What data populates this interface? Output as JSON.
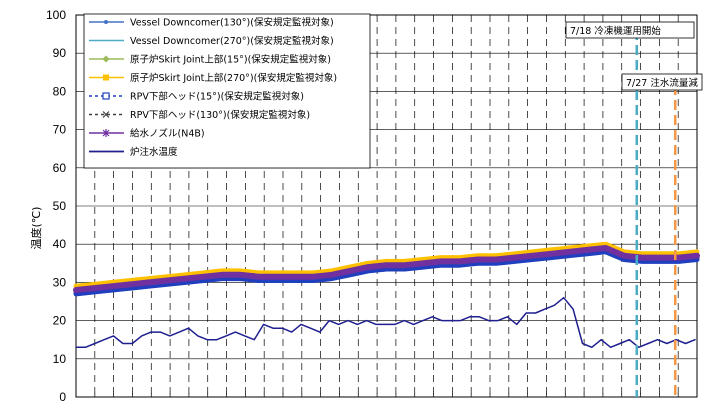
{
  "chart_data": {
    "type": "line",
    "ylabel": "温度(℃)",
    "ylim": [
      0,
      100
    ],
    "yticks": [
      0,
      10,
      20,
      30,
      40,
      50,
      60,
      70,
      80,
      90,
      100
    ],
    "grid": "dashed-vertical",
    "legend_position": "top-left",
    "annotations": [
      {
        "text": "7/18 冷凍機運用開始",
        "x_fraction": 0.903,
        "color": "#4bacc6"
      },
      {
        "text": "7/27 注水流量減",
        "x_fraction": 0.965,
        "color": "#f79646"
      }
    ],
    "series": [
      {
        "name": "Vessel Downcomer(130°)(保安規定監視対象)",
        "color": "#4472c4",
        "marker": "dot",
        "values": [
          28,
          28.5,
          29,
          29.5,
          30,
          30.5,
          31,
          31.5,
          32,
          32,
          31.5,
          31.5,
          31.5,
          31.5,
          32,
          33,
          34,
          34.5,
          34.5,
          35,
          35.5,
          35.5,
          36,
          36,
          36.5,
          37,
          37.5,
          38,
          38.5,
          39,
          37,
          36.5,
          36.5,
          36.5,
          37
        ]
      },
      {
        "name": "Vessel Downcomer(270°)(保安規定監視対象)",
        "color": "#4bacc6",
        "marker": "none",
        "values": [
          28,
          28.5,
          29,
          29.5,
          30,
          30.5,
          31,
          31.5,
          32,
          32,
          31.5,
          31.5,
          31.5,
          31.5,
          32,
          33,
          34,
          34.5,
          34.5,
          35,
          35.5,
          35.5,
          36,
          36,
          36.5,
          37,
          37.5,
          38,
          38.5,
          39,
          37,
          36.5,
          36.5,
          36.5,
          37
        ]
      },
      {
        "name": "原子炉Skirt Joint上部(15°)(保安規定監視対象)",
        "color": "#9bbb59",
        "marker": "diamond",
        "values": [
          27.5,
          28,
          28.5,
          29,
          29.5,
          30,
          30.5,
          31,
          31.5,
          31.5,
          31,
          31,
          31,
          31,
          31.5,
          32.5,
          33.5,
          34,
          34,
          34.5,
          35,
          35,
          35.5,
          35.5,
          36,
          36.5,
          37,
          37.5,
          38,
          38.5,
          36.5,
          36,
          36,
          36,
          36.5
        ]
      },
      {
        "name": "原子炉Skirt Joint上部(270°)(保安規定監視対象)",
        "color": "#ffc000",
        "marker": "square",
        "values": [
          29,
          29.5,
          30,
          30.5,
          31,
          31.5,
          32,
          32.5,
          33,
          33,
          32.5,
          32.5,
          32.5,
          32.5,
          33,
          34,
          35,
          35.5,
          35.5,
          36,
          36.5,
          36.5,
          37,
          37,
          37.5,
          38,
          38.5,
          39,
          39.5,
          40,
          38,
          37.5,
          37.5,
          37.5,
          38
        ]
      },
      {
        "name": "RPV下部ヘッド(15°)(保安規定監視対象)",
        "color": "#1f3fbf",
        "marker": "open-square",
        "values": [
          27,
          27.5,
          28,
          28.5,
          29,
          29.5,
          30,
          30.5,
          31,
          31,
          30.5,
          30.5,
          30.5,
          30.5,
          31,
          32,
          33,
          33.5,
          33.5,
          34,
          34.5,
          34.5,
          35,
          35,
          35.5,
          36,
          36.5,
          37,
          37.5,
          38,
          36,
          35.5,
          35.5,
          35.5,
          36
        ]
      },
      {
        "name": "RPV下部ヘッド(130°)(保安規定監視対象)",
        "color": "#404040",
        "marker": "x",
        "values": [
          27.5,
          28,
          28.5,
          29,
          29.5,
          30,
          30.5,
          31,
          31.5,
          31.5,
          31,
          31,
          31,
          31,
          31.5,
          32.5,
          33.5,
          34,
          34,
          34.5,
          35,
          35,
          35.5,
          35.5,
          36,
          36.5,
          37,
          37.5,
          38,
          38.5,
          36.5,
          36,
          36,
          36,
          36.5
        ]
      },
      {
        "name": "給水ノズル(N4B)",
        "color": "#7030a0",
        "marker": "star",
        "values": [
          28,
          28.5,
          29,
          29.5,
          30,
          30.5,
          31,
          31.5,
          32,
          32,
          31.5,
          31.5,
          31.5,
          31.5,
          32,
          33,
          34,
          34.5,
          34.5,
          35,
          35.5,
          35.5,
          36,
          36,
          36.5,
          37,
          37.5,
          38,
          38.5,
          39,
          37,
          36.5,
          36.5,
          36.5,
          37
        ]
      },
      {
        "name": "炉注水温度",
        "color": "#1f1f8f",
        "marker": "none",
        "values": [
          13,
          13,
          14,
          15,
          16,
          14,
          14,
          16,
          17,
          17,
          16,
          17,
          18,
          16,
          15,
          15,
          16,
          17,
          16,
          15,
          19,
          18,
          18,
          17,
          19,
          18,
          17,
          20,
          19,
          20,
          19,
          20,
          19,
          19,
          19,
          20,
          19,
          20,
          21,
          20,
          20,
          20,
          21,
          21,
          20,
          20,
          21,
          19,
          22,
          22,
          23,
          24,
          26,
          23,
          14,
          13,
          15,
          13,
          14,
          15,
          13,
          14,
          15,
          14,
          15,
          14,
          15
        ]
      }
    ]
  }
}
